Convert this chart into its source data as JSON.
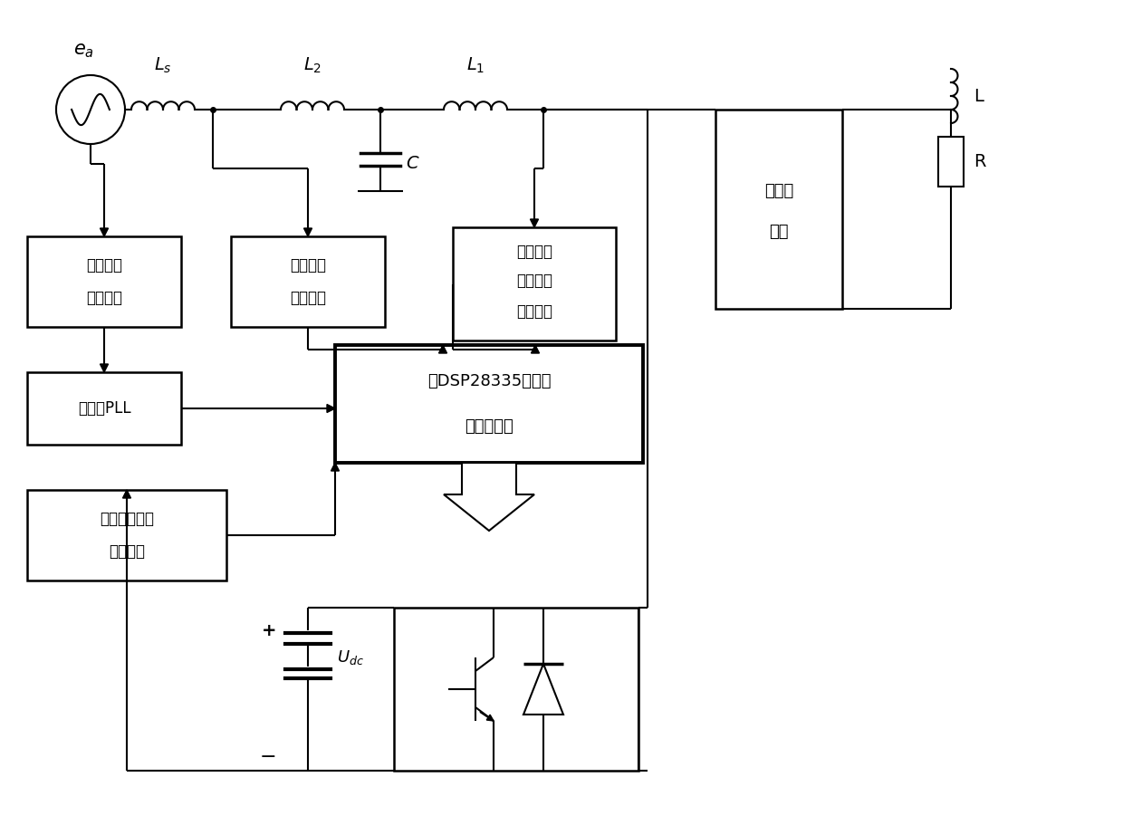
{
  "bg_color": "#ffffff",
  "line_color": "#000000",
  "fig_width": 12.4,
  "fig_height": 9.11,
  "lw": 1.5,
  "blw": 1.8,
  "dsp_lw": 2.8,
  "labels": {
    "ea": "$e_a$",
    "Ls": "$L_s$",
    "L2": "$L_2$",
    "L1": "$L_1$",
    "C": "$C$",
    "L_load": "L",
    "R_load": "R",
    "nl_load1": "非线性",
    "nl_load2": "负载",
    "grid_v1": "电网电压",
    "grid_v2": "检测电路",
    "grid_i1": "电网电流",
    "grid_i2": "检测电路",
    "inv_i1": "逃变器侧",
    "inv_i2": "电感电流",
    "inv_i3": "检测电路",
    "pll": "锁相环PLL",
    "dsp1": "以DSP28335为核心",
    "dsp2": "的控制系统",
    "dc1": "直流电容电压",
    "dc2": "检测电路",
    "Udc": "$U_{dc}$",
    "plus": "+",
    "minus": "−"
  }
}
